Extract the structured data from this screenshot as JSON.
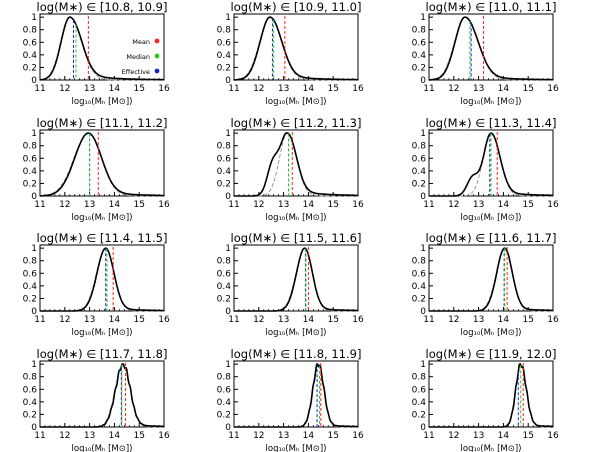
{
  "figure": {
    "xlabel": "log₁₀(Mₕ [M⊙])",
    "xticks": [
      11,
      12,
      13,
      14,
      15,
      16
    ],
    "yticks": [
      0.0,
      0.2,
      0.4,
      0.6,
      0.8,
      1.0
    ],
    "colors": {
      "curve": "#000000",
      "fit": "#999999",
      "mean": "#ff2222",
      "median": "#22cc22",
      "effective": "#1f1fdd"
    }
  },
  "legend": {
    "panel_index": 0,
    "entries": [
      {
        "label": "Mean",
        "color": "#ff2222"
      },
      {
        "label": "Median",
        "color": "#22cc22"
      },
      {
        "label": "Effective",
        "color": "#1f1fdd"
      }
    ]
  },
  "chart_data": [
    {
      "type": "line",
      "title": "log(M∗) ∈ [10.8, 10.9]",
      "xlabel": "log₁₀(Mₕ [M⊙])",
      "ylabel": "",
      "xlim": [
        11,
        16
      ],
      "ylim": [
        0,
        1.05
      ],
      "peak": 12.2,
      "width_left": 0.35,
      "width_right": 0.45,
      "tail": 0.12,
      "mean": 12.95,
      "median": 12.45,
      "effective": 12.35
    },
    {
      "type": "line",
      "title": "log(M∗) ∈ [10.9, 11.0]",
      "xlabel": "log₁₀(Mₕ [M⊙])",
      "ylabel": "",
      "xlim": [
        11,
        16
      ],
      "ylim": [
        0,
        1.05
      ],
      "peak": 12.45,
      "width_left": 0.4,
      "width_right": 0.45,
      "tail": 0.1,
      "mean": 13.05,
      "median": 12.6,
      "effective": 12.55
    },
    {
      "type": "line",
      "title": "log(M∗) ∈ [11.0, 11.1]",
      "xlabel": "log₁₀(Mₕ [M⊙])",
      "ylabel": "",
      "xlim": [
        11,
        16
      ],
      "ylim": [
        0,
        1.05
      ],
      "peak": 12.45,
      "width_left": 0.4,
      "width_right": 0.5,
      "tail": 0.1,
      "mean": 13.2,
      "median": 12.65,
      "effective": 12.7
    },
    {
      "type": "line",
      "title": "log(M∗) ∈ [11.1, 11.2]",
      "xlabel": "log₁₀(Mₕ [M⊙])",
      "ylabel": "",
      "xlim": [
        11,
        16
      ],
      "ylim": [
        0,
        1.05
      ],
      "peak": 12.95,
      "width_left": 0.55,
      "width_right": 0.5,
      "tail": 0.1,
      "mean": 13.35,
      "median": 13.0,
      "effective": 13.0
    },
    {
      "type": "line",
      "title": "log(M∗) ∈ [11.2, 11.3]",
      "xlabel": "log₁₀(Mₕ [M⊙])",
      "ylabel": "",
      "xlim": [
        11,
        16
      ],
      "ylim": [
        0,
        1.05
      ],
      "peak": 13.15,
      "width_left": 0.3,
      "width_right": 0.35,
      "tail": 0.1,
      "mean": 13.35,
      "median": 13.2,
      "effective": 13.2,
      "shoulder": {
        "x": 12.55,
        "height": 0.45,
        "width": 0.22
      }
    },
    {
      "type": "line",
      "title": "log(M∗) ∈ [11.3, 11.4]",
      "xlabel": "log₁₀(Mₕ [M⊙])",
      "ylabel": "",
      "xlim": [
        11,
        16
      ],
      "ylim": [
        0,
        1.05
      ],
      "peak": 13.5,
      "width_left": 0.3,
      "width_right": 0.35,
      "tail": 0.08,
      "mean": 13.75,
      "median": 13.5,
      "effective": 13.45,
      "shoulder": {
        "x": 12.75,
        "height": 0.28,
        "width": 0.22
      }
    },
    {
      "type": "line",
      "title": "log(M∗) ∈ [11.4, 11.5]",
      "xlabel": "log₁₀(Mₕ [M⊙])",
      "ylabel": "",
      "xlim": [
        11,
        16
      ],
      "ylim": [
        0,
        1.05
      ],
      "peak": 13.65,
      "width_left": 0.35,
      "width_right": 0.32,
      "tail": 0.05,
      "mean": 13.95,
      "median": 13.7,
      "effective": 13.65
    },
    {
      "type": "line",
      "title": "log(M∗) ∈ [11.5, 11.6]",
      "xlabel": "log₁₀(Mₕ [M⊙])",
      "ylabel": "",
      "xlim": [
        11,
        16
      ],
      "ylim": [
        0,
        1.05
      ],
      "peak": 13.85,
      "width_left": 0.33,
      "width_right": 0.3,
      "tail": 0.05,
      "mean": 14.0,
      "median": 13.9,
      "effective": 13.88
    },
    {
      "type": "line",
      "title": "log(M∗) ∈ [11.6, 11.7]",
      "xlabel": "log₁₀(Mₕ [M⊙])",
      "ylabel": "",
      "xlim": [
        11,
        16
      ],
      "ylim": [
        0,
        1.05
      ],
      "peak": 14.05,
      "width_left": 0.32,
      "width_right": 0.3,
      "tail": 0.05,
      "mean": 14.15,
      "median": 14.05,
      "effective": 14.03
    },
    {
      "type": "line",
      "title": "log(M∗) ∈ [11.7, 11.8]",
      "xlabel": "log₁₀(Mₕ [M⊙])",
      "ylabel": "",
      "xlim": [
        11,
        16
      ],
      "ylim": [
        0,
        1.05
      ],
      "peak": 14.35,
      "width_left": 0.3,
      "width_right": 0.28,
      "tail": 0.04,
      "mean": 14.45,
      "median": 14.3,
      "effective": 14.28,
      "noisy": true
    },
    {
      "type": "line",
      "title": "log(M∗) ∈ [11.8, 11.9]",
      "xlabel": "log₁₀(Mₕ [M⊙])",
      "ylabel": "",
      "xlim": [
        11,
        16
      ],
      "ylim": [
        0,
        1.05
      ],
      "peak": 14.4,
      "width_left": 0.22,
      "width_right": 0.22,
      "tail": 0.03,
      "mean": 14.5,
      "median": 14.45,
      "effective": 14.35,
      "noisy": true
    },
    {
      "type": "line",
      "title": "log(M∗) ∈ [11.9, 12.0]",
      "xlabel": "log₁₀(Mₕ [M⊙])",
      "ylabel": "",
      "xlim": [
        11,
        16
      ],
      "ylim": [
        0,
        1.05
      ],
      "peak": 14.7,
      "width_left": 0.2,
      "width_right": 0.22,
      "tail": 0.03,
      "mean": 14.8,
      "median": 14.7,
      "effective": 14.6,
      "noisy": true
    }
  ]
}
